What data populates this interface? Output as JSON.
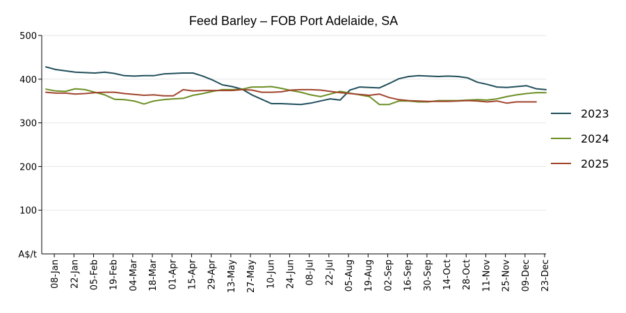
{
  "chart_data": {
    "type": "line",
    "title": "Feed Barley – FOB Port Adelaide, SA",
    "ylabel": "A$/t",
    "xlabel": "",
    "ylim": [
      0,
      500
    ],
    "yticks": [
      100,
      200,
      300,
      400,
      500
    ],
    "grid": "horizontal",
    "legend_position": "right",
    "x_tick_labels": [
      "08-Jan",
      "22-Jan",
      "05-Feb",
      "19-Feb",
      "04-Mar",
      "18-Mar",
      "01-Apr",
      "15-Apr",
      "29-Apr",
      "13-May",
      "27-May",
      "10-Jun",
      "24-Jun",
      "08-Jul",
      "22-Jul",
      "05-Aug",
      "19-Aug",
      "02-Sep",
      "16-Sep",
      "30-Sep",
      "14-Oct",
      "28-Oct",
      "11-Nov",
      "25-Nov",
      "09-Dec",
      "23-Dec"
    ],
    "x_points_per_tick": 2,
    "series": [
      {
        "name": "2023",
        "color": "#1f4e5a",
        "values": [
          428,
          422,
          419,
          416,
          415,
          414,
          416,
          413,
          408,
          407,
          408,
          408,
          412,
          413,
          414,
          414,
          407,
          398,
          387,
          383,
          377,
          364,
          354,
          344,
          344,
          343,
          342,
          345,
          350,
          355,
          352,
          375,
          382,
          381,
          380,
          390,
          401,
          406,
          408,
          407,
          406,
          407,
          406,
          403,
          393,
          388,
          382,
          381,
          383,
          385,
          378,
          376
        ]
      },
      {
        "name": "2024",
        "color": "#6b8e23",
        "values": [
          377,
          373,
          372,
          378,
          376,
          370,
          364,
          354,
          353,
          350,
          343,
          350,
          353,
          355,
          356,
          363,
          367,
          372,
          376,
          376,
          377,
          382,
          382,
          383,
          379,
          374,
          370,
          364,
          360,
          366,
          372,
          368,
          364,
          360,
          342,
          342,
          350,
          350,
          348,
          348,
          351,
          351,
          351,
          352,
          353,
          352,
          355,
          360,
          364,
          367,
          369,
          369
        ]
      },
      {
        "name": "2025",
        "color": "#a0442c",
        "values": [
          370,
          368,
          368,
          366,
          367,
          369,
          370,
          370,
          367,
          365,
          363,
          364,
          362,
          362,
          376,
          373,
          374,
          374,
          374,
          374,
          376,
          375,
          370,
          370,
          371,
          375,
          376,
          376,
          375,
          372,
          369,
          367,
          365,
          363,
          366,
          358,
          353,
          351,
          350,
          349,
          349,
          349,
          350,
          351,
          350,
          348,
          350,
          345,
          348,
          348,
          348
        ]
      }
    ]
  }
}
